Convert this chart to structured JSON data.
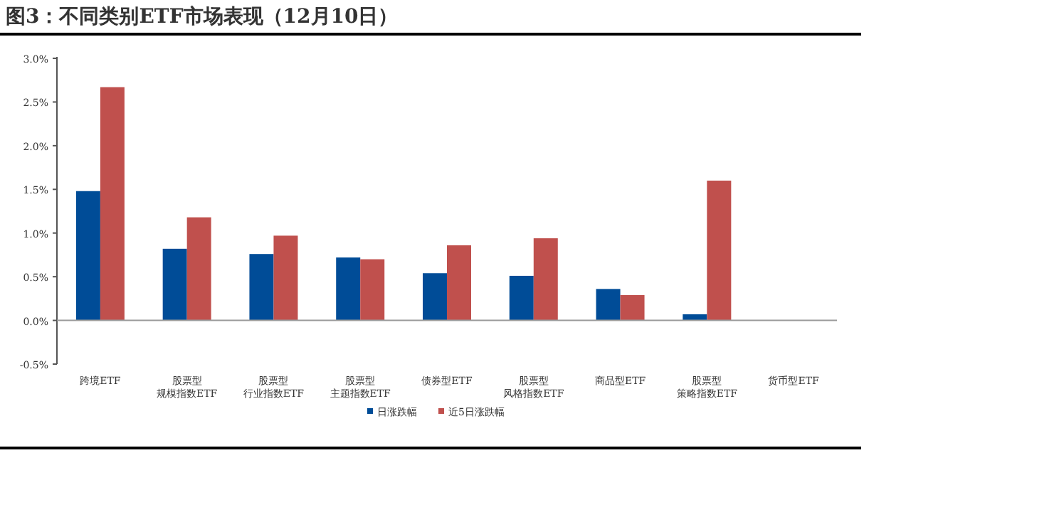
{
  "chart_data": {
    "type": "bar",
    "title": "图3：不同类别ETF市场表现（12月10日）",
    "categories": [
      "跨境ETF",
      "股票型规模指数ETF",
      "股票型行业指数ETF",
      "股票型主题指数ETF",
      "债券型ETF",
      "股票型风格指数ETF",
      "商品型ETF",
      "股票型策略指数ETF",
      "货币型ETF"
    ],
    "series": [
      {
        "name": "日涨跌幅",
        "color": "#004c97",
        "values": [
          1.48,
          0.82,
          0.76,
          0.72,
          0.54,
          0.51,
          0.36,
          0.07,
          0
        ]
      },
      {
        "name": "近5日涨跌幅",
        "color": "#c0504d",
        "values": [
          2.67,
          1.18,
          0.97,
          0.7,
          0.86,
          0.94,
          0.29,
          1.6,
          0
        ]
      }
    ],
    "ylim": [
      -0.5,
      3.0
    ],
    "yticks": [
      {
        "value": -0.5,
        "label": "-0.5%"
      },
      {
        "value": 0,
        "label": "0.0%"
      },
      {
        "value": 0.5,
        "label": "0.5%"
      },
      {
        "value": 1.0,
        "label": "1.0%"
      },
      {
        "value": 1.5,
        "label": "1.5%"
      },
      {
        "value": 2.0,
        "label": "2.0%"
      },
      {
        "value": 2.5,
        "label": "2.5%"
      },
      {
        "value": 3.0,
        "label": "3.0%"
      }
    ],
    "legend": "bottom"
  }
}
